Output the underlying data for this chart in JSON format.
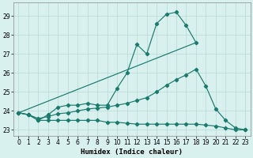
{
  "xlabel": "Humidex (Indice chaleur)",
  "background_color": "#d8f0ee",
  "grid_color": "#b8d8d4",
  "line_color": "#1a7a6e",
  "xlim": [
    -0.5,
    23.5
  ],
  "ylim": [
    22.7,
    29.7
  ],
  "yticks": [
    23,
    24,
    25,
    26,
    27,
    28,
    29
  ],
  "xticks": [
    0,
    1,
    2,
    3,
    4,
    5,
    6,
    7,
    8,
    9,
    10,
    11,
    12,
    13,
    14,
    15,
    16,
    17,
    18,
    19,
    20,
    21,
    22,
    23
  ],
  "line1_x": [
    0,
    1,
    2,
    3,
    4,
    5,
    6,
    7,
    8,
    9,
    10,
    11,
    12,
    13,
    14,
    15,
    16,
    17,
    18
  ],
  "line1_y": [
    23.9,
    23.8,
    23.5,
    23.8,
    24.2,
    24.3,
    24.3,
    24.4,
    24.3,
    24.3,
    25.2,
    26.0,
    27.5,
    27.0,
    28.6,
    29.1,
    29.2,
    28.5,
    27.6
  ],
  "line2_x": [
    0,
    1,
    2,
    3,
    4,
    5,
    6,
    7,
    8,
    9,
    10,
    11,
    12,
    13,
    14,
    15,
    16,
    17,
    18,
    19,
    20,
    21,
    22,
    23
  ],
  "line2_y": [
    23.9,
    23.8,
    23.6,
    23.7,
    23.85,
    23.9,
    24.0,
    24.1,
    24.15,
    24.2,
    24.3,
    24.4,
    24.55,
    24.7,
    25.0,
    25.35,
    25.65,
    25.9,
    26.2,
    25.3,
    24.1,
    23.5,
    23.1,
    23.0
  ],
  "line3_x": [
    0,
    1,
    2,
    3,
    4,
    5,
    6,
    7,
    8,
    9,
    10,
    11,
    12,
    13,
    14,
    15,
    16,
    17,
    18,
    19,
    20,
    21,
    22,
    23
  ],
  "line3_y": [
    23.9,
    23.8,
    23.5,
    23.5,
    23.5,
    23.5,
    23.5,
    23.5,
    23.5,
    23.4,
    23.4,
    23.35,
    23.3,
    23.3,
    23.3,
    23.3,
    23.3,
    23.3,
    23.3,
    23.25,
    23.2,
    23.1,
    23.0,
    23.0
  ],
  "line4_x": [
    0,
    18
  ],
  "line4_y": [
    23.9,
    27.6
  ]
}
